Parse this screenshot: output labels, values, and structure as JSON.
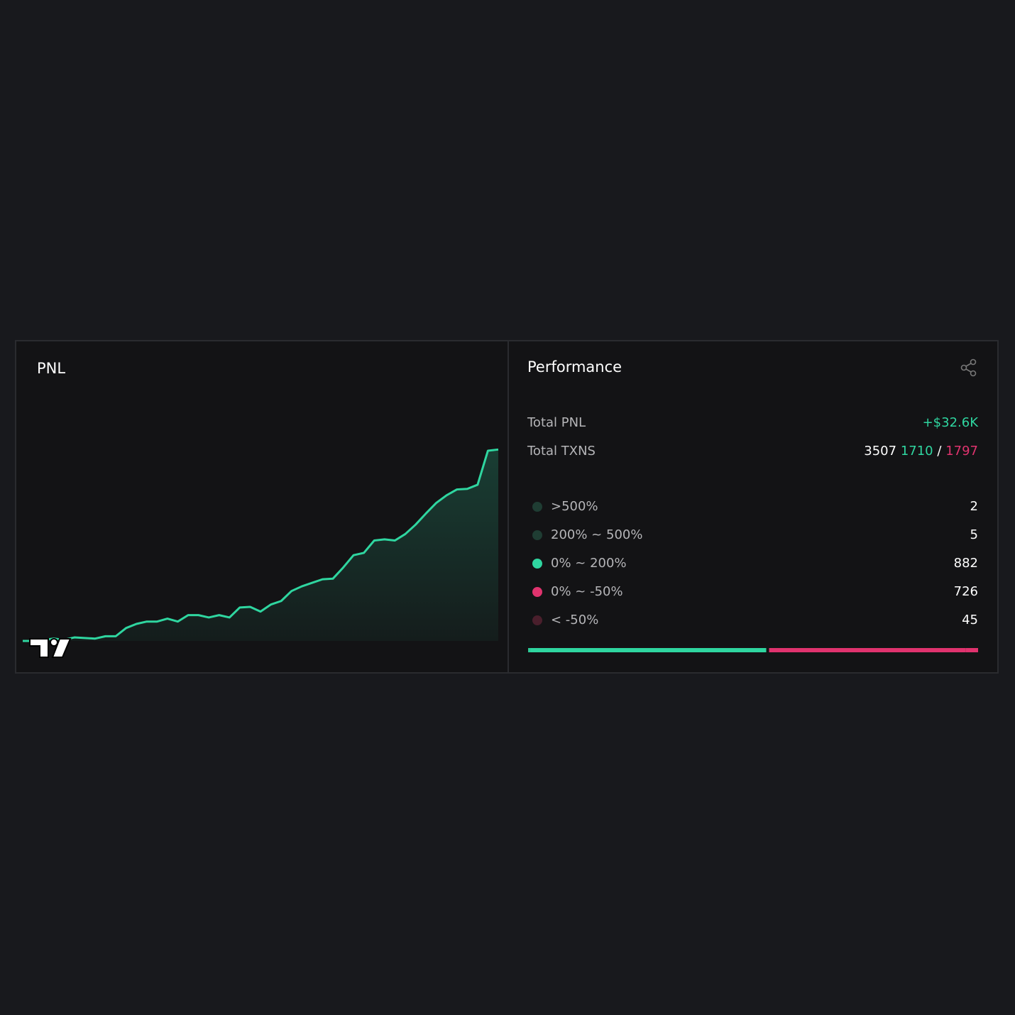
{
  "pnl_panel": {
    "title": "PNL",
    "chart_data": {
      "type": "area",
      "color": "#2fd6a0",
      "values": [
        0,
        0,
        200,
        400,
        200,
        600,
        500,
        400,
        800,
        800,
        2200,
        2900,
        3300,
        3300,
        3800,
        3300,
        4400,
        4400,
        4000,
        4400,
        4000,
        5700,
        5800,
        5000,
        6200,
        6800,
        8500,
        9300,
        9900,
        10500,
        10600,
        12500,
        14600,
        15000,
        17100,
        17300,
        17100,
        18200,
        19800,
        21700,
        23500,
        24800,
        25800,
        25900,
        26600,
        32400,
        32600
      ],
      "ylim": [
        0,
        33000
      ]
    }
  },
  "performance": {
    "title": "Performance",
    "total_pnl": {
      "label": "Total PNL",
      "value": "+$32.6K"
    },
    "total_txns": {
      "label": "Total TXNS",
      "total": "3507",
      "wins": "1710",
      "separator": "/",
      "losses": "1797"
    },
    "buckets": [
      {
        "name": ">500%",
        "count": 2,
        "color": "#1f3d33",
        "bar_color": "#2fd6a0"
      },
      {
        "name": "200% ~ 500%",
        "count": 5,
        "color": "#1f3d33",
        "bar_color": "#2fd6a0"
      },
      {
        "name": "0% ~ 200%",
        "count": 882,
        "color": "#2fd6a0",
        "bar_color": "#2fd6a0"
      },
      {
        "name": "0% ~ -50%",
        "count": 726,
        "color": "#e0336e",
        "bar_color": "#e0336e"
      },
      {
        "name": "< -50%",
        "count": 45,
        "color": "#4a1f2c",
        "bar_color": "#e0336e"
      }
    ]
  }
}
